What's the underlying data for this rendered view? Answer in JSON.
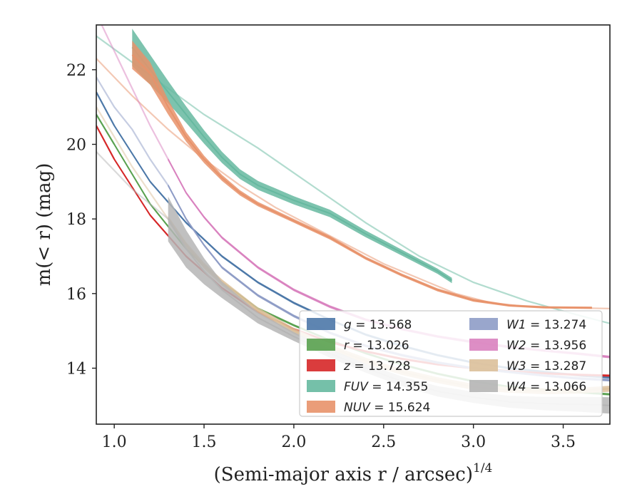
{
  "chart_data": {
    "type": "line",
    "xlabel": "(Semi-major axis r / arcsec)",
    "xlabel_sup": "1/4",
    "ylabel": "m(< r) (mag)",
    "xlim": [
      0.9,
      3.76
    ],
    "ylim": [
      23.2,
      12.5
    ],
    "y_inverted": true,
    "xticks": [
      1.0,
      1.5,
      2.0,
      2.5,
      3.0,
      3.5
    ],
    "xtick_labels": [
      "1.0",
      "1.5",
      "2.0",
      "2.5",
      "3.0",
      "3.5"
    ],
    "yticks": [
      14,
      16,
      18,
      20,
      22
    ],
    "ytick_labels": [
      "14",
      "16",
      "18",
      "20",
      "22"
    ],
    "grid": false,
    "legend_position": "lower-right",
    "series": [
      {
        "name": "g = 13.568",
        "band": "g",
        "mag": "13.568",
        "color": "#4c78a8",
        "x": [
          0.9,
          1.0,
          1.2,
          1.4,
          1.6,
          1.8,
          2.0,
          2.2,
          2.4,
          2.6,
          2.8,
          3.0,
          3.2,
          3.4,
          3.6,
          3.76
        ],
        "y": [
          21.4,
          20.5,
          19.0,
          17.9,
          17.0,
          16.3,
          15.75,
          15.3,
          14.9,
          14.6,
          14.35,
          14.15,
          14.0,
          13.9,
          13.8,
          13.75
        ],
        "faint_until": 1.1,
        "halfwidth": 0.03
      },
      {
        "name": "r = 13.026",
        "band": "r",
        "mag": "13.026",
        "color": "#59a14f",
        "x": [
          0.9,
          1.0,
          1.2,
          1.4,
          1.6,
          1.8,
          2.0,
          2.2,
          2.4,
          2.6,
          2.8,
          3.0,
          3.2,
          3.4,
          3.6,
          3.76
        ],
        "y": [
          20.8,
          20.0,
          18.4,
          17.2,
          16.3,
          15.6,
          15.15,
          14.75,
          14.4,
          14.1,
          13.85,
          13.65,
          13.5,
          13.42,
          13.35,
          13.3
        ],
        "faint_until": 1.1,
        "halfwidth": 0.03
      },
      {
        "name": "z = 13.728",
        "band": "z",
        "mag": "13.728",
        "color": "#d62728",
        "x": [
          0.9,
          1.0,
          1.2,
          1.4,
          1.6,
          1.8,
          2.0,
          2.2,
          2.4,
          2.6,
          2.8,
          3.0,
          3.2,
          3.4,
          3.6,
          3.76
        ],
        "y": [
          20.5,
          19.6,
          18.1,
          17.0,
          16.15,
          15.5,
          15.05,
          14.7,
          14.45,
          14.25,
          14.1,
          14.0,
          13.92,
          13.86,
          13.82,
          13.8
        ],
        "faint_until": 1.1,
        "halfwidth": 0.03
      },
      {
        "name": "FUV = 14.355",
        "band": "FUV",
        "mag": "14.355",
        "color": "#66b9a0",
        "x": [
          1.1,
          1.2,
          1.3,
          1.4,
          1.5,
          1.6,
          1.7,
          1.8,
          2.0,
          2.2,
          2.4,
          2.6,
          2.8,
          2.88
        ],
        "y": [
          22.6,
          22.0,
          21.4,
          20.8,
          20.2,
          19.65,
          19.2,
          18.9,
          18.5,
          18.15,
          17.6,
          17.1,
          16.6,
          16.35
        ],
        "halfwidth": [
          0.5,
          0.4,
          0.3,
          0.22,
          0.18,
          0.15,
          0.13,
          0.12,
          0.11,
          0.1,
          0.09,
          0.08,
          0.07,
          0.07
        ],
        "faint_x": [
          0.9,
          1.1,
          1.3,
          1.5,
          1.8,
          2.1,
          2.4,
          2.7,
          3.0,
          3.3,
          3.6,
          3.76
        ],
        "faint_y": [
          22.9,
          22.2,
          21.5,
          20.8,
          19.9,
          18.9,
          17.9,
          17.0,
          16.3,
          15.8,
          15.4,
          15.2
        ]
      },
      {
        "name": "NUV = 15.624",
        "band": "NUV",
        "mag": "15.624",
        "color": "#e8926a",
        "x": [
          1.1,
          1.2,
          1.3,
          1.4,
          1.5,
          1.6,
          1.7,
          1.8,
          2.0,
          2.2,
          2.4,
          2.6,
          2.8,
          3.0,
          3.2,
          3.4,
          3.66
        ],
        "y": [
          22.4,
          21.9,
          21.0,
          20.2,
          19.6,
          19.1,
          18.7,
          18.4,
          17.95,
          17.5,
          16.95,
          16.5,
          16.1,
          15.82,
          15.68,
          15.63,
          15.62
        ],
        "halfwidth": [
          0.38,
          0.3,
          0.2,
          0.13,
          0.1,
          0.08,
          0.07,
          0.06,
          0.05,
          0.05,
          0.04,
          0.04,
          0.04,
          0.04,
          0.03,
          0.03,
          0.03
        ],
        "faint_x": [
          0.9,
          1.1,
          1.3,
          1.5,
          1.7,
          1.9,
          2.1,
          2.3,
          2.5,
          2.7,
          2.9,
          3.1,
          3.3,
          3.5,
          3.76
        ],
        "faint_y": [
          22.3,
          21.3,
          20.4,
          19.6,
          18.9,
          18.3,
          17.8,
          17.3,
          16.8,
          16.4,
          16.0,
          15.75,
          15.65,
          15.62,
          15.6
        ]
      },
      {
        "name": "W1 = 13.274",
        "band": "W1",
        "mag": "13.274",
        "color": "#8e9cc6",
        "x": [
          1.3,
          1.4,
          1.5,
          1.6,
          1.8,
          2.0,
          2.2,
          2.4,
          2.6,
          2.8,
          3.0,
          3.2,
          3.4,
          3.6,
          3.76
        ],
        "y": [
          18.9,
          18.0,
          17.3,
          16.7,
          15.95,
          15.4,
          14.95,
          14.6,
          14.35,
          14.15,
          14.0,
          13.9,
          13.8,
          13.72,
          13.68
        ],
        "faint_x": [
          0.9,
          1.0,
          1.1,
          1.2,
          1.3
        ],
        "faint_y": [
          21.8,
          21.0,
          20.4,
          19.6,
          18.9
        ],
        "halfwidth": 0.035
      },
      {
        "name": "W2 = 13.956",
        "band": "W2",
        "mag": "13.956",
        "color": "#d982bf",
        "x": [
          1.3,
          1.4,
          1.5,
          1.6,
          1.8,
          2.0,
          2.2,
          2.4,
          2.6,
          2.8,
          3.0,
          3.2,
          3.4,
          3.6,
          3.76
        ],
        "y": [
          19.6,
          18.7,
          18.05,
          17.5,
          16.7,
          16.1,
          15.65,
          15.3,
          15.05,
          14.85,
          14.7,
          14.57,
          14.47,
          14.38,
          14.3
        ],
        "faint_x": [
          0.9,
          1.0,
          1.1,
          1.2,
          1.3
        ],
        "faint_y": [
          23.5,
          22.5,
          21.5,
          20.5,
          19.6
        ],
        "halfwidth": 0.035
      },
      {
        "name": "W3 = 13.287",
        "band": "W3",
        "mag": "13.287",
        "color": "#dcc09a",
        "x": [
          1.3,
          1.4,
          1.5,
          1.6,
          1.8,
          2.0,
          2.2,
          2.4,
          2.6,
          2.8,
          3.0,
          3.2,
          3.4,
          3.6,
          3.76
        ],
        "y": [
          18.0,
          17.3,
          16.75,
          16.3,
          15.55,
          15.0,
          14.55,
          14.2,
          13.9,
          13.68,
          13.5,
          13.42,
          13.38,
          13.4,
          13.45
        ],
        "faint_x": [
          0.9,
          1.0,
          1.1,
          1.2,
          1.3
        ],
        "faint_y": [
          21.0,
          20.2,
          19.4,
          18.7,
          18.0
        ],
        "halfwidth": 0.08
      },
      {
        "name": "W4 = 13.066",
        "band": "W4",
        "mag": "13.066",
        "color": "#b5b5b5",
        "x": [
          1.3,
          1.4,
          1.5,
          1.6,
          1.8,
          2.0,
          2.2,
          2.4,
          2.6,
          2.8,
          3.0,
          3.2,
          3.4,
          3.6,
          3.76
        ],
        "y": [
          18.0,
          17.2,
          16.6,
          16.1,
          15.35,
          14.85,
          14.4,
          14.0,
          13.65,
          13.38,
          13.22,
          13.1,
          13.05,
          13.03,
          13.0
        ],
        "halfwidth": [
          0.6,
          0.5,
          0.35,
          0.22,
          0.15,
          0.12,
          0.12,
          0.12,
          0.13,
          0.14,
          0.15,
          0.16,
          0.18,
          0.2,
          0.22
        ],
        "faint_x": [
          0.9,
          1.0,
          1.1,
          1.2,
          1.3
        ],
        "faint_y": [
          19.8,
          19.3,
          18.8,
          18.4,
          18.0
        ]
      }
    ]
  }
}
